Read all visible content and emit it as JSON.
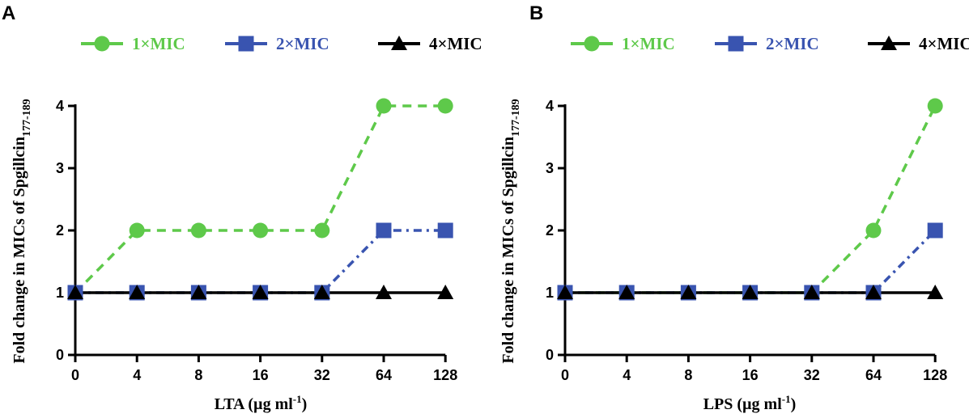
{
  "chart_data": [
    {
      "type": "line",
      "panel_label": "A",
      "categories": [
        "0",
        "4",
        "8",
        "16",
        "32",
        "64",
        "128"
      ],
      "xlabel_main": "LTA",
      "xlabel_unit_start": " (µg ml",
      "xlabel_unit_sup": "-1",
      "xlabel_unit_end": ")",
      "ylabel_main": "Fold change in MICs of Spgillcin",
      "ylabel_sub": "177-189",
      "ylim": [
        0,
        4
      ],
      "yticks": [
        "0",
        "1",
        "2",
        "3",
        "4"
      ],
      "series": [
        {
          "name": "1×MIC",
          "color": "#5ec94a",
          "marker": "circle",
          "linestyle": "dashed",
          "values": [
            1,
            2,
            2,
            2,
            2,
            4,
            4
          ]
        },
        {
          "name": "2×MIC",
          "color": "#3954b0",
          "marker": "square",
          "linestyle": "dashdot",
          "values": [
            1,
            1,
            1,
            1,
            1,
            2,
            2
          ]
        },
        {
          "name": "4×MIC",
          "color": "#000000",
          "marker": "triangle",
          "linestyle": "solid",
          "values": [
            1,
            1,
            1,
            1,
            1,
            1,
            1
          ]
        }
      ]
    },
    {
      "type": "line",
      "panel_label": "B",
      "categories": [
        "0",
        "4",
        "8",
        "16",
        "32",
        "64",
        "128"
      ],
      "xlabel_main": "LPS",
      "xlabel_unit_start": " (µg ml",
      "xlabel_unit_sup": "-1",
      "xlabel_unit_end": ")",
      "ylabel_main": "Fold change in MICs of Spgillcin",
      "ylabel_sub": "177-189",
      "ylim": [
        0,
        4
      ],
      "yticks": [
        "0",
        "1",
        "2",
        "3",
        "4"
      ],
      "series": [
        {
          "name": "1×MIC",
          "color": "#5ec94a",
          "marker": "circle",
          "linestyle": "dashed",
          "values": [
            1,
            1,
            1,
            1,
            1,
            2,
            4
          ]
        },
        {
          "name": "2×MIC",
          "color": "#3954b0",
          "marker": "square",
          "linestyle": "dashdot",
          "values": [
            1,
            1,
            1,
            1,
            1,
            1,
            2
          ]
        },
        {
          "name": "4×MIC",
          "color": "#000000",
          "marker": "triangle",
          "linestyle": "solid",
          "values": [
            1,
            1,
            1,
            1,
            1,
            1,
            1
          ]
        }
      ]
    }
  ]
}
